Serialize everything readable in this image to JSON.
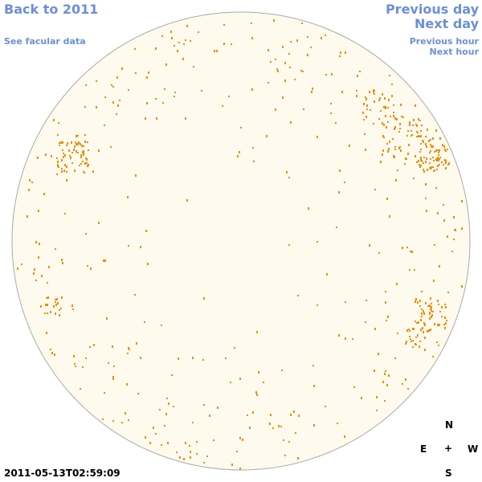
{
  "nav": {
    "back": "Back to 2011",
    "facular": "See facular data",
    "previous_day": "Previous day",
    "next_day": "Next day",
    "previous_hour": "Previous hour",
    "next_hour": "Next hour"
  },
  "compass": {
    "north": "N",
    "east": "E",
    "center": "+",
    "west": "W",
    "south": "S"
  },
  "timestamp": "2011-05-13T02:59:09"
}
